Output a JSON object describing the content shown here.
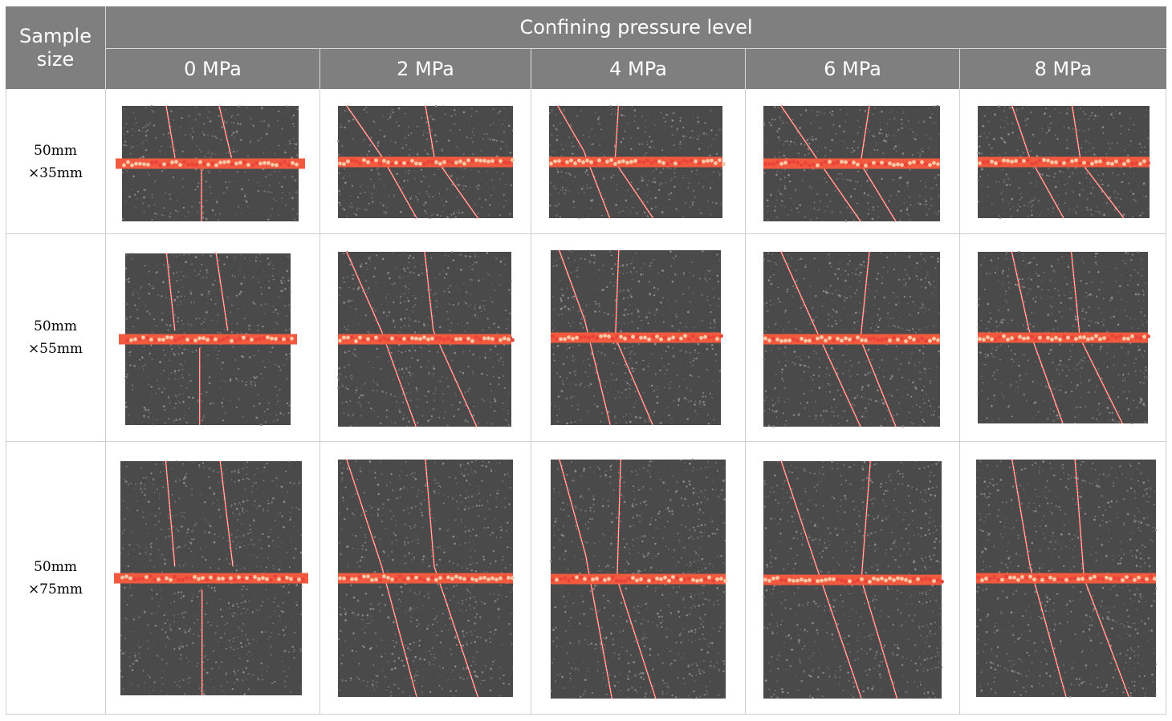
{
  "table": {
    "corner_header": "Sample\nsize",
    "group_header": "Confining pressure level",
    "columns": [
      "0 MPa",
      "2 MPa",
      "4 MPa",
      "6 MPa",
      "8 MPa"
    ],
    "rows": [
      {
        "label": "50mm\n×35mm",
        "images": [
          "dem-crack-image",
          "dem-crack-image",
          "dem-crack-image",
          "dem-crack-image",
          "dem-crack-image"
        ]
      },
      {
        "label": "50mm\n×55mm",
        "images": [
          "dem-crack-image",
          "dem-crack-image",
          "dem-crack-image",
          "dem-crack-image",
          "dem-crack-image"
        ]
      },
      {
        "label": "50mm\n×75mm",
        "images": [
          "dem-crack-image",
          "dem-crack-image",
          "dem-crack-image",
          "dem-crack-image",
          "dem-crack-image"
        ]
      }
    ]
  },
  "colors": {
    "header_bg": "#7f7f7f",
    "header_text": "#ffffff",
    "specimen_fill": "#4a4a4a",
    "crack_color": "#e0231b",
    "band_color": "#f25a3f",
    "band_highlight": "#f7c9a8",
    "grid_line": "#cfcfcf"
  }
}
